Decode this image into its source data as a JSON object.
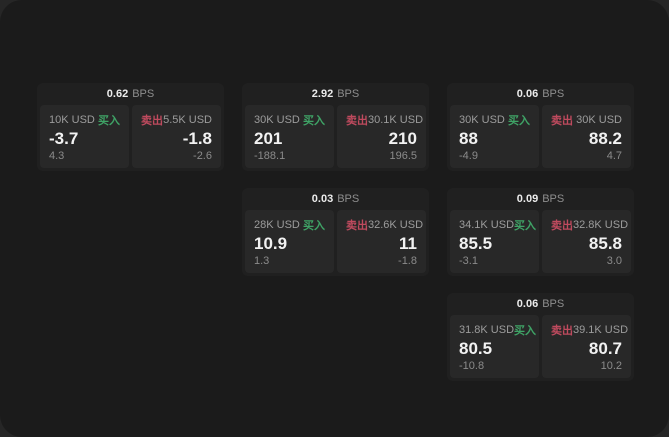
{
  "labels": {
    "bps": "BPS",
    "buy": "买入",
    "sell": "卖出"
  },
  "colors": {
    "buy": "#3fa366",
    "sell": "#bf4a5e",
    "page_bg": "#1b1b1b",
    "card_bg": "#202020",
    "panel_bg": "#282828"
  },
  "cards": [
    {
      "row": 1,
      "col": 1,
      "bps": "0.62",
      "buy": {
        "size": "10K USD",
        "price": "-3.7",
        "delta": "4.3"
      },
      "sell": {
        "size": "5.5K USD",
        "price": "-1.8",
        "delta": "-2.6"
      }
    },
    {
      "row": 1,
      "col": 2,
      "bps": "2.92",
      "buy": {
        "size": "30K USD",
        "price": "201",
        "delta": "-188.1"
      },
      "sell": {
        "size": "30.1K USD",
        "price": "210",
        "delta": "196.5"
      }
    },
    {
      "row": 1,
      "col": 3,
      "bps": "0.06",
      "buy": {
        "size": "30K USD",
        "price": "88",
        "delta": "-4.9"
      },
      "sell": {
        "size": "30K USD",
        "price": "88.2",
        "delta": "4.7"
      }
    },
    {
      "row": 2,
      "col": 2,
      "bps": "0.03",
      "buy": {
        "size": "28K USD",
        "price": "10.9",
        "delta": "1.3"
      },
      "sell": {
        "size": "32.6K USD",
        "price": "11",
        "delta": "-1.8"
      }
    },
    {
      "row": 2,
      "col": 3,
      "bps": "0.09",
      "buy": {
        "size": "34.1K USD",
        "price": "85.5",
        "delta": "-3.1"
      },
      "sell": {
        "size": "32.8K USD",
        "price": "85.8",
        "delta": "3.0"
      }
    },
    {
      "row": 3,
      "col": 3,
      "bps": "0.06",
      "buy": {
        "size": "31.8K USD",
        "price": "80.5",
        "delta": "-10.8"
      },
      "sell": {
        "size": "39.1K USD",
        "price": "80.7",
        "delta": "10.2"
      }
    }
  ]
}
